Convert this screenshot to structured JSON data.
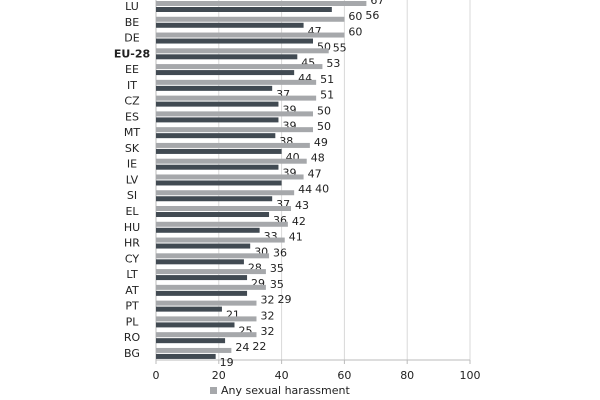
{
  "chart_data": {
    "type": "bar",
    "orientation": "horizontal",
    "categories": [
      "LU",
      "BE",
      "DE",
      "EU-28",
      "EE",
      "IT",
      "CZ",
      "ES",
      "MT",
      "SK",
      "IE",
      "LV",
      "SI",
      "EL",
      "HU",
      "HR",
      "CY",
      "LT",
      "AT",
      "PT",
      "PL",
      "RO",
      "BG"
    ],
    "highlight_category": "EU-28",
    "series": [
      {
        "name": "Any sexual harassment",
        "color": "#a6a8ab",
        "values": [
          67,
          60,
          60,
          55,
          53,
          51,
          51,
          50,
          50,
          49,
          48,
          47,
          44,
          43,
          42,
          41,
          36,
          35,
          35,
          32,
          32,
          32,
          24
        ]
      },
      {
        "color": "#414a52",
        "values": [
          56,
          47,
          50,
          45,
          44,
          37,
          39,
          39,
          38,
          40,
          39,
          40,
          37,
          36,
          33,
          30,
          28,
          29,
          29,
          21,
          25,
          22,
          19
        ]
      }
    ],
    "xlim": [
      0,
      100
    ],
    "xticks": [
      0,
      20,
      40,
      60,
      80,
      100
    ],
    "grid": true,
    "legend_placement": "bottom"
  }
}
